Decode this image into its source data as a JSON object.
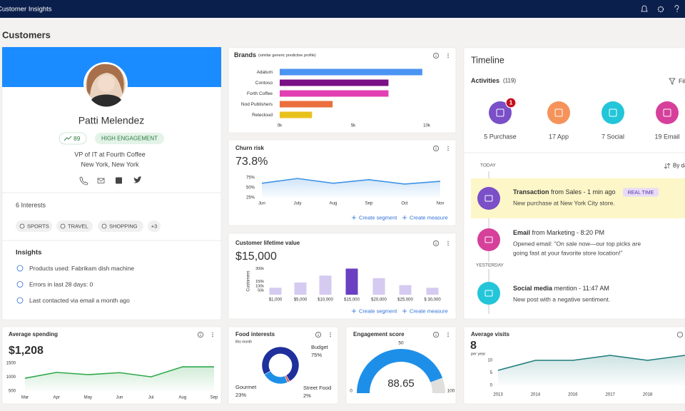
{
  "header": {
    "app_title": "Customer Insights"
  },
  "page_title": "Customers",
  "profile": {
    "name": "Patti Melendez",
    "score": 89,
    "badge": "HIGH ENGAGEMENT",
    "job": "VP of IT at Fourth Coffee",
    "location": "New York, New York",
    "interests_title": "6 Interests",
    "interests": [
      "SPORTS",
      "TRAVEL",
      "SHOPPING",
      "+3"
    ],
    "insights_title": "Insights",
    "insights": [
      "Products used: Fabrikam dish machine",
      "Errors in last 28 days: 0",
      "Last contacted via email a month ago"
    ]
  },
  "brands": {
    "type": "bar",
    "orientation": "horizontal",
    "title": "Brands",
    "subtitle": "(similar generic predictive profile)",
    "categories": [
      "Adatum",
      "Contoso",
      "Forth Coffee",
      "Nod Publishers",
      "Relecloud"
    ],
    "values": [
      9700,
      7400,
      7400,
      3600,
      2200
    ],
    "colors": [
      "#4a94f2",
      "#7a0f86",
      "#e23fb3",
      "#ea6f3c",
      "#e9c11c"
    ],
    "xlim": [
      0,
      10000
    ],
    "xticks": [
      {
        "value": 0,
        "label": "0k"
      },
      {
        "value": 5000,
        "label": "5k"
      },
      {
        "value": 10000,
        "label": "10k"
      }
    ]
  },
  "churn": {
    "type": "area",
    "title": "Churn risk",
    "headline": "73.8%",
    "categories": [
      "Jun",
      "July",
      "Aug",
      "Sep",
      "Oct",
      "Nov"
    ],
    "values": [
      61,
      73,
      61,
      70,
      59,
      66
    ],
    "color": "#3f93e4",
    "ylim": [
      25,
      75
    ],
    "yticks": [
      {
        "value": 25,
        "label": "25%"
      },
      {
        "value": 50,
        "label": "50%"
      },
      {
        "value": 75,
        "label": "75%"
      }
    ],
    "actions": [
      "Create segment",
      "Create measure"
    ]
  },
  "clv": {
    "type": "bar",
    "title": "Customer lifetime value",
    "headline": "$15,000",
    "y_label": "Customers",
    "categories": [
      "$1,000",
      "$5,000",
      "$10,000",
      "$15,000",
      "$20,000",
      "$25,000",
      "$ 30,000"
    ],
    "values": [
      80000,
      140000,
      220000,
      300000,
      190000,
      110000,
      80000
    ],
    "colors": [
      "#d5caf0",
      "#d5caf0",
      "#d5caf0",
      "#6a3fc1",
      "#d5caf0",
      "#d5caf0",
      "#d5caf0"
    ],
    "ylim": [
      0,
      320000
    ],
    "yticks": [
      {
        "value": 50000,
        "label": "50k"
      },
      {
        "value": 100000,
        "label": "100k"
      },
      {
        "value": 150000,
        "label": "150k"
      },
      {
        "value": 300000,
        "label": "300k"
      }
    ],
    "actions": [
      "Create segment",
      "Create measure"
    ]
  },
  "avg_spending": {
    "type": "area",
    "title": "Average spending",
    "headline": "$1,208",
    "categories": [
      "Mar",
      "Apr",
      "May",
      "Jun",
      "Jul",
      "Aug",
      "Sep"
    ],
    "values": [
      960,
      1170,
      1090,
      1160,
      1010,
      1370,
      1370
    ],
    "color": "#2ea84a",
    "ylim": [
      500,
      1500
    ],
    "yticks": [
      500,
      1000,
      1500
    ]
  },
  "food": {
    "type": "donut",
    "title": "Food interests",
    "subtitle": "this month",
    "categories": [
      "Budget",
      "Gourmet",
      "Street Food"
    ],
    "values": [
      75,
      23,
      2
    ],
    "value_labels": [
      "75%",
      "23%",
      "2%"
    ],
    "colors": [
      "#1f2f9c",
      "#1e8fe8",
      "#e05a4f"
    ]
  },
  "engagement": {
    "type": "gauge",
    "title": "Engagement score",
    "value": 88.65,
    "range": [
      0,
      100
    ],
    "ticks": [
      0,
      50,
      100
    ],
    "color": "#1e8fe8"
  },
  "avg_visits": {
    "type": "area",
    "title": "Average visits",
    "headline": "8",
    "subtitle": "per year",
    "categories": [
      "2013",
      "2014",
      "2016",
      "2017",
      "2018",
      null
    ],
    "values": [
      6,
      10,
      10,
      12,
      10,
      12
    ],
    "color": "#1f7c7c",
    "ylim": [
      0,
      13
    ],
    "yticks": [
      0,
      5,
      10
    ]
  },
  "timeline": {
    "title": "Timeline",
    "activities_label": "Activities",
    "activities_count": "(119)",
    "filter": "Filter",
    "activities": [
      {
        "label": "5 Purchase",
        "badge": 1,
        "color": "#7a4fc7"
      },
      {
        "label": "17 App",
        "color": "#f5935b"
      },
      {
        "label": "7 Social",
        "color": "#22c6d8"
      },
      {
        "label": "19 Email",
        "color": "#d6409b"
      }
    ],
    "today": "TODAY",
    "sort": "By date",
    "yesterday": "YESTERDAY",
    "events": [
      {
        "title": "Transaction",
        "meta": " from Sales - 1 min ago",
        "tag": "REAL TIME",
        "text": [
          "New purchase at New York City store."
        ],
        "color": "#7a4fc7"
      },
      {
        "title": "Email",
        "meta": " from Marketing - 8:20 PM",
        "text": [
          "Opened email: “On sale now—our top picks are",
          "going fast at your favorite store location!”"
        ],
        "color": "#d6409b"
      },
      {
        "title": "Social media",
        "meta": " mention - 11:47 AM",
        "text": [
          "New post with a negative sentiment."
        ],
        "color": "#22c6d8"
      }
    ]
  }
}
